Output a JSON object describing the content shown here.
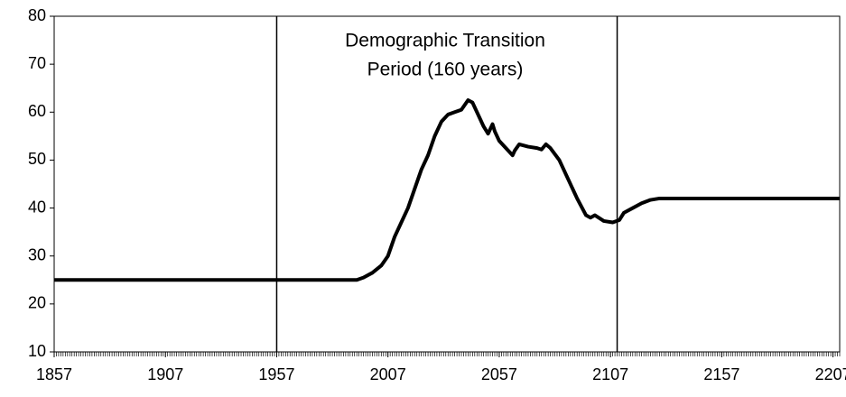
{
  "chart_data": {
    "type": "line",
    "annotation": [
      "Demographic Transition",
      "Period (160 years)"
    ],
    "x": [
      1857,
      1993,
      1996,
      2000,
      2004,
      2007,
      2010,
      2013,
      2016,
      2019,
      2022,
      2025,
      2028,
      2031,
      2034,
      2037,
      2040,
      2043,
      2045,
      2046,
      2048,
      2050,
      2052,
      2054,
      2055,
      2057,
      2060,
      2063,
      2064,
      2066,
      2070,
      2074,
      2076,
      2078,
      2080,
      2084,
      2088,
      2092,
      2096,
      2098,
      2100,
      2104,
      2108,
      2111,
      2113,
      2117,
      2121,
      2125,
      2129,
      2210
    ],
    "series": [
      {
        "color": "#000000",
        "values": [
          25,
          25,
          25.5,
          26.5,
          28,
          30,
          34,
          37,
          40,
          44,
          48,
          51,
          55,
          58,
          59.5,
          60,
          60.5,
          62.5,
          62,
          61,
          59,
          57,
          55.5,
          57.5,
          56,
          54,
          52.5,
          51,
          52,
          53.3,
          52.8,
          52.5,
          52.2,
          53.3,
          52.5,
          50,
          46,
          42,
          38.5,
          38,
          38.5,
          37.3,
          37,
          37.5,
          39,
          40,
          41,
          41.7,
          42,
          42
        ]
      }
    ],
    "xlim": [
      1857,
      2210
    ],
    "ylim": [
      10,
      80
    ],
    "xticks": [
      1857,
      1907,
      1957,
      2007,
      2057,
      2107,
      2157,
      2207
    ],
    "yticks": [
      10,
      20,
      30,
      40,
      50,
      60,
      70,
      80
    ],
    "xminor_step": 1,
    "vlines": [
      1957,
      2110
    ]
  }
}
